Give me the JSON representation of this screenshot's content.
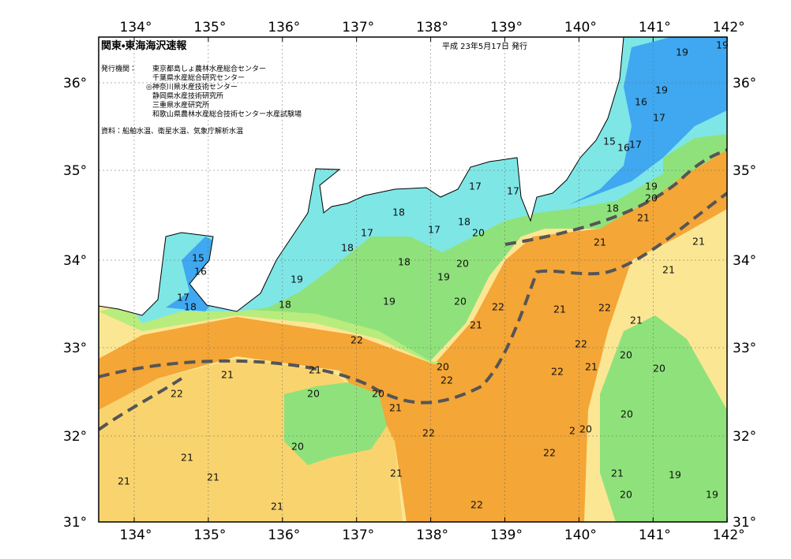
{
  "header": {
    "title": "関東・東海海沢速報",
    "date": "平成 23年5月17日 発行",
    "agencies_label": "発行機関：",
    "agencies": [
      "東京都島しょ農林水産総合センター",
      "千葉県水産総合研究センター",
      "◎神奈川県水産技術センター",
      "静岡県水産技術研究所",
      "三重県水産研究所",
      "和歌山県農林水産総合技術センター水産試験場"
    ],
    "sources": "資料：船舶水温、衛星水温、気象庁解析水温"
  },
  "axes": {
    "lon_labels": [
      "134°",
      "135°",
      "136°",
      "137°",
      "138°",
      "139°",
      "140°",
      "141°",
      "142°"
    ],
    "lat_labels": [
      "36°",
      "35°",
      "34°",
      "33°",
      "32°",
      "31°"
    ]
  },
  "contour_labels": [
    "19",
    "19",
    "19",
    "16",
    "17",
    "15",
    "16",
    "17",
    "19",
    "20",
    "18",
    "21",
    "21",
    "21",
    "21",
    "17",
    "17",
    "18",
    "18",
    "17",
    "20",
    "17",
    "18",
    "15",
    "16",
    "18",
    "20",
    "19",
    "19",
    "20",
    "19",
    "22",
    "17",
    "18",
    "18",
    "21",
    "22",
    "21",
    "21",
    "22",
    "22",
    "20",
    "20",
    "21",
    "22",
    "21",
    "20",
    "21",
    "22",
    "22",
    "20",
    "20",
    "21",
    "20",
    "22",
    "2",
    "20",
    "20",
    "22",
    "21",
    "21",
    "21",
    "21",
    "19",
    "21",
    "20",
    "19",
    "22",
    "21"
  ]
}
